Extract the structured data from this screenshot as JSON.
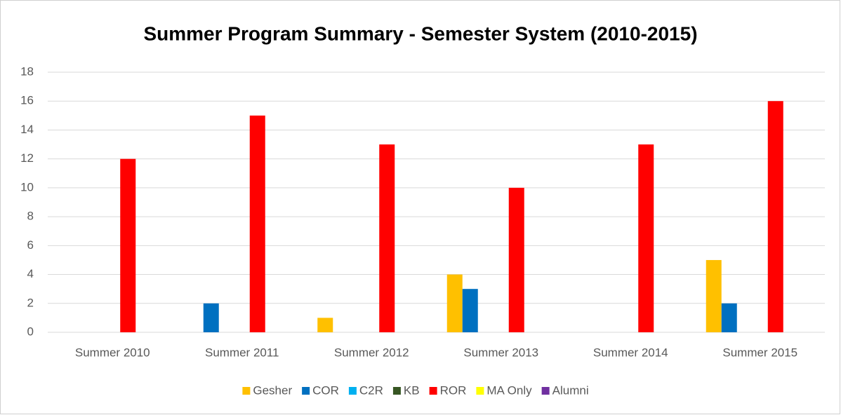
{
  "chart_data": {
    "type": "bar",
    "title": "Summer Program Summary - Semester System (2010-2015)",
    "categories": [
      "Summer 2010",
      "Summer 2011",
      "Summer 2012",
      "Summer 2013",
      "Summer 2014",
      "Summer 2015"
    ],
    "series": [
      {
        "name": "Gesher",
        "color": "#ffc000",
        "values": [
          0,
          0,
          1,
          4,
          0,
          5
        ]
      },
      {
        "name": "COR",
        "color": "#0070c0",
        "values": [
          0,
          2,
          0,
          3,
          0,
          2
        ]
      },
      {
        "name": "C2R",
        "color": "#00b0f0",
        "values": [
          0,
          0,
          0,
          0,
          0,
          0
        ]
      },
      {
        "name": "KB",
        "color": "#375623",
        "values": [
          0,
          0,
          0,
          0,
          0,
          0
        ]
      },
      {
        "name": "ROR",
        "color": "#ff0000",
        "values": [
          12,
          15,
          13,
          10,
          13,
          16
        ]
      },
      {
        "name": "MA Only",
        "color": "#ffff00",
        "values": [
          0,
          0,
          0,
          0,
          0,
          0
        ]
      },
      {
        "name": "Alumni",
        "color": "#7030a0",
        "values": [
          0,
          0,
          0,
          0,
          0,
          0
        ]
      }
    ],
    "ylim": [
      0,
      18
    ],
    "yticks": [
      0,
      2,
      4,
      6,
      8,
      10,
      12,
      14,
      16,
      18
    ],
    "grid": true,
    "legend": "bottom"
  }
}
